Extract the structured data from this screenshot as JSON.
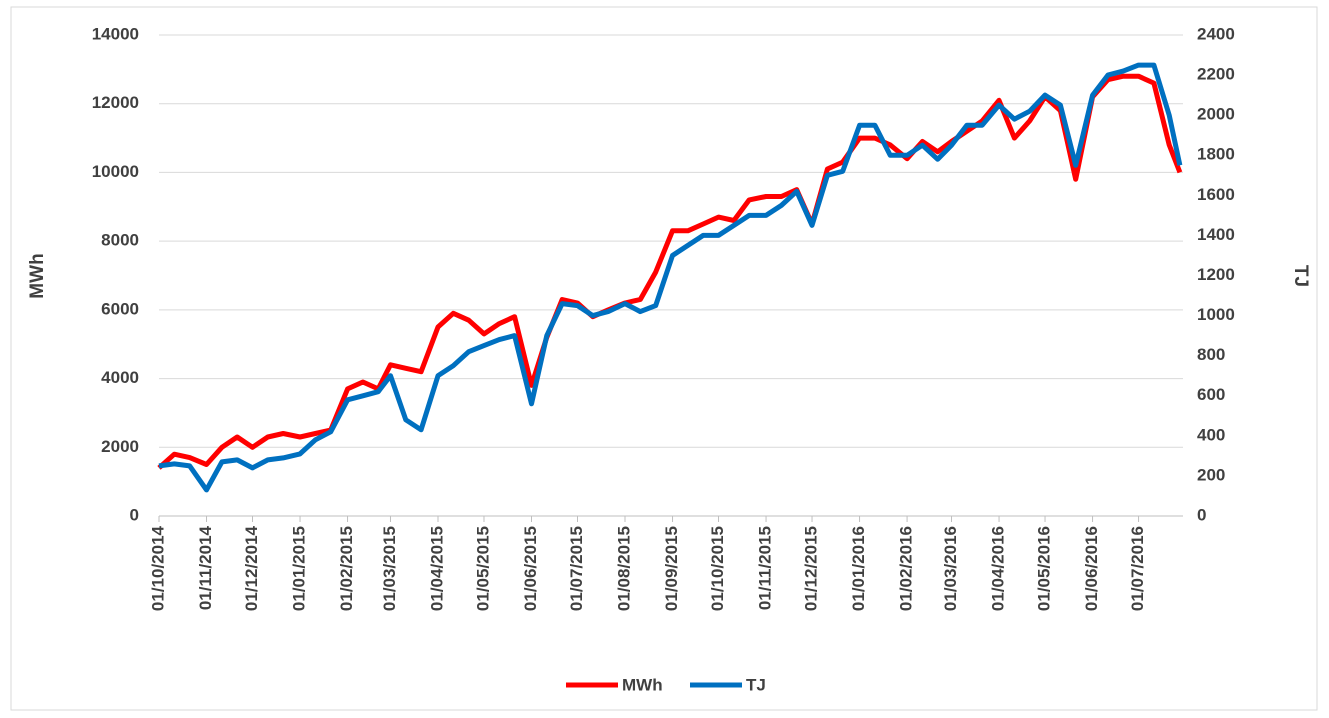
{
  "chart_data": {
    "type": "line",
    "y_label": "MWh",
    "y2_label": "TJ",
    "x": [
      "01/10/2014",
      "11/10/2014",
      "21/10/2014",
      "01/11/2014",
      "11/11/2014",
      "21/11/2014",
      "01/12/2014",
      "11/12/2014",
      "21/12/2014",
      "01/01/2015",
      "11/01/2015",
      "21/01/2015",
      "01/02/2015",
      "11/02/2015",
      "21/02/2015",
      "01/03/2015",
      "11/03/2015",
      "21/03/2015",
      "01/04/2015",
      "11/04/2015",
      "21/04/2015",
      "01/05/2015",
      "11/05/2015",
      "21/05/2015",
      "01/06/2015",
      "11/06/2015",
      "21/06/2015",
      "01/07/2015",
      "11/07/2015",
      "21/07/2015",
      "01/08/2015",
      "11/08/2015",
      "21/08/2015",
      "01/09/2015",
      "11/09/2015",
      "21/09/2015",
      "01/10/2015",
      "11/10/2015",
      "21/10/2015",
      "01/11/2015",
      "11/11/2015",
      "21/11/2015",
      "01/12/2015",
      "11/12/2015",
      "21/12/2015",
      "01/01/2016",
      "11/01/2016",
      "21/01/2016",
      "01/02/2016",
      "11/02/2016",
      "21/02/2016",
      "01/03/2016",
      "11/03/2016",
      "21/03/2016",
      "01/04/2016",
      "11/04/2016",
      "21/04/2016",
      "01/05/2016",
      "11/05/2016",
      "21/05/2016",
      "01/06/2016",
      "11/06/2016",
      "21/06/2016",
      "01/07/2016",
      "11/07/2016",
      "21/07/2016",
      "28/07/2016"
    ],
    "xlim": [
      "01/10/2014",
      "30/07/2016"
    ],
    "xticks": [
      "01/10/2014",
      "01/11/2014",
      "01/12/2014",
      "01/01/2015",
      "01/02/2015",
      "01/03/2015",
      "01/04/2015",
      "01/05/2015",
      "01/06/2015",
      "01/07/2015",
      "01/08/2015",
      "01/09/2015",
      "01/10/2015",
      "01/11/2015",
      "01/12/2015",
      "01/01/2016",
      "01/02/2016",
      "01/03/2016",
      "01/04/2016",
      "01/05/2016",
      "01/06/2016",
      "01/07/2016"
    ],
    "ylim": [
      0,
      14000
    ],
    "yticks": [
      0,
      2000,
      4000,
      6000,
      8000,
      10000,
      12000,
      14000
    ],
    "y2lim": [
      0,
      2400
    ],
    "y2ticks": [
      0,
      200,
      400,
      600,
      800,
      1000,
      1200,
      1400,
      1600,
      1800,
      2000,
      2200,
      2400
    ],
    "grid": true,
    "legend": "bottom",
    "series": [
      {
        "name": "MWh",
        "color": "#ff0000",
        "values": [
          1400,
          1800,
          1700,
          1500,
          2000,
          2300,
          2000,
          2300,
          2400,
          2300,
          2400,
          2500,
          3700,
          3900,
          3700,
          4400,
          4300,
          4200,
          5500,
          5900,
          5700,
          5300,
          5600,
          5800,
          3800,
          5200,
          6300,
          6200,
          5800,
          6000,
          6200,
          6300,
          7100,
          8300,
          8300,
          8500,
          8700,
          8600,
          9200,
          9300,
          9300,
          9500,
          8500,
          10100,
          10300,
          11000,
          11000,
          10800,
          10400,
          10900,
          10600,
          10900,
          11200,
          11500,
          12100,
          11000,
          11500,
          12200,
          11800,
          9800,
          12200,
          12700,
          12800,
          12800,
          12600,
          10800,
          10000
        ]
      },
      {
        "name": "TJ",
        "color": "#0070c0",
        "axis": "y2",
        "values": [
          250,
          260,
          250,
          130,
          270,
          280,
          240,
          280,
          290,
          310,
          380,
          420,
          580,
          600,
          620,
          700,
          480,
          430,
          700,
          750,
          820,
          850,
          880,
          900,
          560,
          900,
          1060,
          1050,
          1000,
          1020,
          1060,
          1020,
          1050,
          1300,
          1350,
          1400,
          1400,
          1450,
          1500,
          1500,
          1550,
          1620,
          1450,
          1700,
          1720,
          1950,
          1950,
          1800,
          1800,
          1850,
          1780,
          1850,
          1950,
          1950,
          2050,
          1980,
          2020,
          2100,
          2050,
          1750,
          2100,
          2200,
          2220,
          2250,
          2250,
          2000,
          1750
        ]
      }
    ]
  }
}
